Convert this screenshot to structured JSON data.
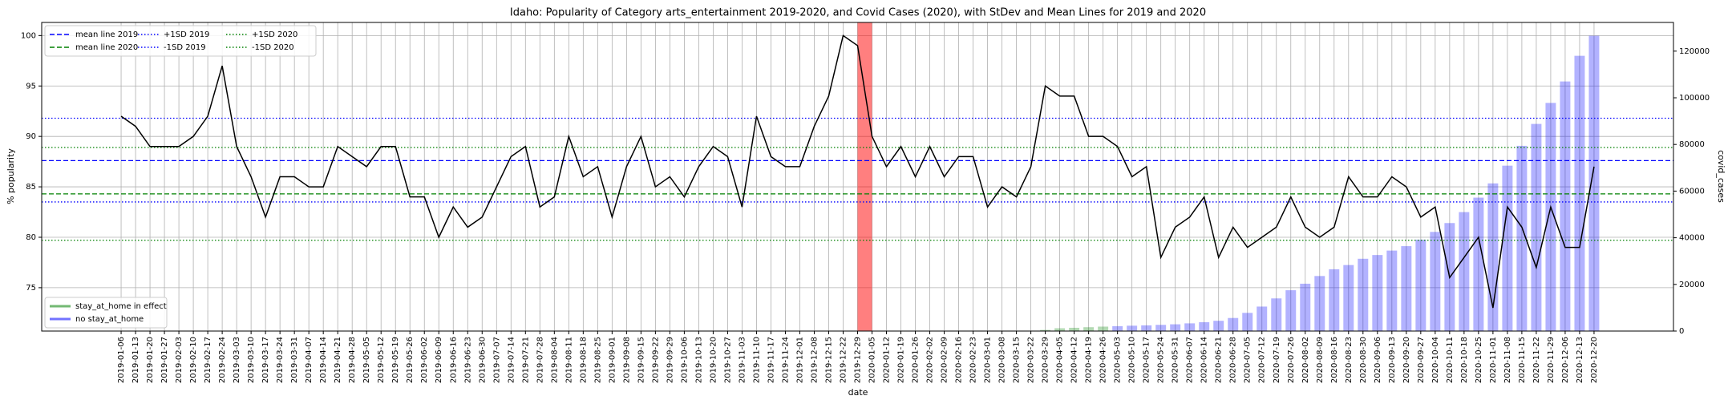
{
  "chart_data": {
    "type": "line",
    "title": "Idaho: Popularity of Category arts_entertainment 2019-2020, and Covid Cases (2020), with StDev and Mean Lines for 2019 and 2020",
    "xlabel": "date",
    "ylabel": "% popularity",
    "y2label": "covid_cases",
    "categories": [
      "2019-01-06",
      "2019-01-13",
      "2019-01-20",
      "2019-01-27",
      "2019-02-03",
      "2019-02-10",
      "2019-02-17",
      "2019-02-24",
      "2019-03-03",
      "2019-03-10",
      "2019-03-17",
      "2019-03-24",
      "2019-03-31",
      "2019-04-07",
      "2019-04-14",
      "2019-04-21",
      "2019-04-28",
      "2019-05-05",
      "2019-05-12",
      "2019-05-19",
      "2019-05-26",
      "2019-06-02",
      "2019-06-09",
      "2019-06-16",
      "2019-06-23",
      "2019-06-30",
      "2019-07-07",
      "2019-07-14",
      "2019-07-21",
      "2019-07-28",
      "2019-08-04",
      "2019-08-11",
      "2019-08-18",
      "2019-08-25",
      "2019-09-01",
      "2019-09-08",
      "2019-09-15",
      "2019-09-22",
      "2019-09-29",
      "2019-10-06",
      "2019-10-13",
      "2019-10-20",
      "2019-10-27",
      "2019-11-03",
      "2019-11-10",
      "2019-11-17",
      "2019-11-24",
      "2019-12-01",
      "2019-12-08",
      "2019-12-15",
      "2019-12-22",
      "2019-12-29",
      "2020-01-05",
      "2020-01-12",
      "2020-01-19",
      "2020-01-26",
      "2020-02-02",
      "2020-02-09",
      "2020-02-16",
      "2020-02-23",
      "2020-03-01",
      "2020-03-08",
      "2020-03-15",
      "2020-03-22",
      "2020-03-29",
      "2020-04-05",
      "2020-04-12",
      "2020-04-19",
      "2020-04-26",
      "2020-05-03",
      "2020-05-10",
      "2020-05-17",
      "2020-05-24",
      "2020-05-31",
      "2020-06-07",
      "2020-06-14",
      "2020-06-21",
      "2020-06-28",
      "2020-07-05",
      "2020-07-12",
      "2020-07-19",
      "2020-07-26",
      "2020-08-02",
      "2020-08-09",
      "2020-08-16",
      "2020-08-23",
      "2020-08-30",
      "2020-09-06",
      "2020-09-13",
      "2020-09-20",
      "2020-09-27",
      "2020-10-04",
      "2020-10-11",
      "2020-10-18",
      "2020-10-25",
      "2020-11-01",
      "2020-11-08",
      "2020-11-15",
      "2020-11-22",
      "2020-11-29",
      "2020-12-06",
      "2020-12-13",
      "2020-12-20"
    ],
    "series": [
      {
        "color": "#000000",
        "values": [
          92,
          91,
          89,
          89,
          89,
          90,
          92,
          97,
          89,
          86,
          82,
          86,
          86,
          85,
          85,
          89,
          88,
          87,
          89,
          89,
          84,
          84,
          80,
          83,
          81,
          82,
          85,
          88,
          89,
          83,
          84,
          90,
          86,
          87,
          82,
          87,
          90,
          85,
          86,
          84,
          87,
          89,
          88,
          83,
          92,
          88,
          87,
          87,
          91,
          94,
          100,
          99,
          90,
          87,
          89,
          86,
          89,
          86,
          88,
          88,
          83,
          85,
          84,
          87,
          95,
          94,
          94,
          90,
          90,
          89,
          86,
          87,
          78,
          81,
          82,
          84,
          78,
          81,
          79,
          80,
          81,
          84,
          81,
          80,
          81,
          86,
          84,
          84,
          86,
          85,
          82,
          83,
          76,
          78,
          80,
          73,
          83,
          81,
          77,
          83,
          79,
          79,
          87
        ]
      },
      {
        "name": "stay_at_home in effect",
        "type": "bar",
        "axis": "y2",
        "color": "#008000",
        "values": [
          null,
          null,
          null,
          null,
          null,
          null,
          null,
          null,
          null,
          null,
          null,
          null,
          null,
          null,
          null,
          null,
          null,
          null,
          null,
          null,
          null,
          null,
          null,
          null,
          null,
          null,
          null,
          null,
          null,
          null,
          null,
          null,
          null,
          null,
          null,
          null,
          null,
          null,
          null,
          null,
          null,
          null,
          null,
          null,
          null,
          null,
          null,
          null,
          null,
          null,
          null,
          null,
          null,
          null,
          null,
          null,
          null,
          null,
          null,
          null,
          null,
          null,
          null,
          null,
          500,
          1200,
          1400,
          1650,
          1900,
          null,
          null,
          null,
          null,
          null,
          null,
          null,
          null,
          null,
          null,
          null,
          null,
          null,
          null,
          null,
          null,
          null,
          null,
          null,
          null,
          null,
          null,
          null,
          null,
          null,
          null,
          null,
          null,
          null,
          null,
          null,
          null,
          null,
          null
        ]
      },
      {
        "name": "no stay_at_home",
        "type": "bar",
        "axis": "y2",
        "color": "#0000ff",
        "values": [
          null,
          null,
          null,
          null,
          null,
          null,
          null,
          null,
          null,
          null,
          null,
          null,
          null,
          null,
          null,
          null,
          null,
          null,
          null,
          null,
          null,
          null,
          null,
          null,
          null,
          null,
          null,
          null,
          null,
          null,
          null,
          null,
          null,
          null,
          null,
          null,
          null,
          null,
          null,
          null,
          null,
          null,
          null,
          null,
          null,
          null,
          null,
          null,
          null,
          null,
          null,
          null,
          null,
          null,
          null,
          null,
          null,
          null,
          null,
          null,
          null,
          null,
          null,
          null,
          null,
          null,
          null,
          null,
          null,
          2100,
          2300,
          2450,
          2650,
          2900,
          3300,
          3800,
          4400,
          5600,
          7800,
          10500,
          14000,
          17500,
          20300,
          23600,
          26500,
          28300,
          31000,
          32600,
          34500,
          36400,
          39200,
          42500,
          46300,
          51000,
          57200,
          63300,
          70900,
          79400,
          88800,
          97800,
          107000,
          118000,
          126600
        ]
      }
    ],
    "reference_lines": [
      {
        "name": "mean line 2019",
        "value": 87.6,
        "color": "#0000ff",
        "style": "dashed"
      },
      {
        "name": "mean line 2020",
        "value": 84.3,
        "color": "#008000",
        "style": "dashed"
      },
      {
        "name": "+1SD 2019",
        "value": 91.8,
        "color": "#0000ff",
        "style": "dotted"
      },
      {
        "name": "-1SD 2019",
        "value": 83.5,
        "color": "#0000ff",
        "style": "dotted"
      },
      {
        "name": "+1SD 2020",
        "value": 88.9,
        "color": "#008000",
        "style": "dotted"
      },
      {
        "name": "-1SD 2020",
        "value": 79.7,
        "color": "#008000",
        "style": "dotted"
      }
    ],
    "highlight": {
      "from": "2019-12-29",
      "to": "2020-01-05",
      "color": "#ff0000"
    },
    "ylim": [
      70.7,
      101.3
    ],
    "yticks": [
      75,
      80,
      85,
      90,
      95,
      100
    ],
    "y2lim": [
      0,
      132300
    ],
    "y2ticks": [
      0,
      20000,
      40000,
      60000,
      80000,
      100000,
      120000
    ],
    "grid": true,
    "legend": "upper left",
    "bar_legend": "lower left"
  }
}
